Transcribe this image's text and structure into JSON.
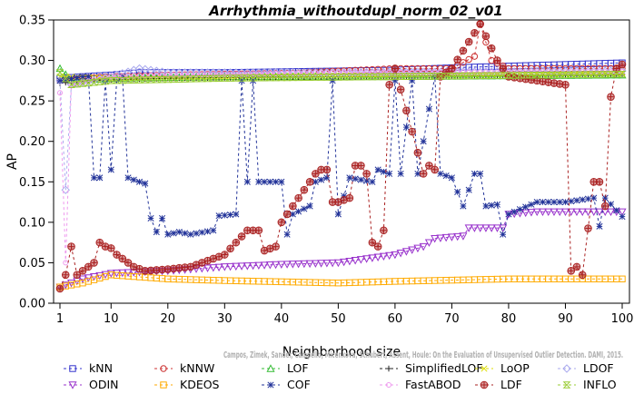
{
  "chart_data": {
    "type": "line",
    "title": "Arrhythmia_withoutdupl_norm_02_v01",
    "xlabel": "Neighborhood size",
    "ylabel": "AP",
    "xlim": [
      1,
      100
    ],
    "ylim": [
      0,
      0.35
    ],
    "x_ticks": [
      "1",
      "10",
      "20",
      "30",
      "40",
      "50",
      "60",
      "70",
      "80",
      "90",
      "100"
    ],
    "y_ticks": [
      "0.00",
      "0.05",
      "0.10",
      "0.15",
      "0.20",
      "0.25",
      "0.30",
      "0.35"
    ],
    "grid": false,
    "legend_position": "bottom",
    "credit": "Campos, Zimek, Sander, Campello, Micenkova, Schubert, Assent, Houle: On the Evaluation of Unsupervised Outlier Detection. DAMI, 2015.",
    "series": [
      {
        "name": "kNN",
        "color": "#3333cc",
        "marker": "square",
        "keypoints": [
          [
            1,
            0.278
          ],
          [
            5,
            0.28
          ],
          [
            10,
            0.282
          ],
          [
            15,
            0.285
          ],
          [
            30,
            0.285
          ],
          [
            60,
            0.288
          ],
          [
            70,
            0.291
          ],
          [
            80,
            0.293
          ],
          [
            90,
            0.295
          ],
          [
            100,
            0.297
          ]
        ]
      },
      {
        "name": "kNNW",
        "color": "#cc3333",
        "marker": "circle",
        "keypoints": [
          [
            1,
            0.275
          ],
          [
            5,
            0.278
          ],
          [
            10,
            0.28
          ],
          [
            20,
            0.282
          ],
          [
            40,
            0.284
          ],
          [
            60,
            0.29
          ],
          [
            70,
            0.29
          ],
          [
            74,
            0.305
          ],
          [
            75,
            0.345
          ],
          [
            77,
            0.3
          ],
          [
            80,
            0.29
          ],
          [
            100,
            0.29
          ]
        ]
      },
      {
        "name": "LOF",
        "color": "#33bb33",
        "marker": "triangle",
        "keypoints": [
          [
            1,
            0.29
          ],
          [
            3,
            0.275
          ],
          [
            10,
            0.278
          ],
          [
            30,
            0.28
          ],
          [
            60,
            0.28
          ],
          [
            100,
            0.282
          ]
        ]
      },
      {
        "name": "SimplifiedLOF",
        "color": "#222222",
        "marker": "plus",
        "keypoints": [
          [
            1,
            0.272
          ],
          [
            5,
            0.275
          ],
          [
            20,
            0.278
          ],
          [
            50,
            0.28
          ],
          [
            100,
            0.283
          ]
        ]
      },
      {
        "name": "LoOP",
        "color": "#dddd00",
        "marker": "x",
        "keypoints": [
          [
            1,
            0.28
          ],
          [
            10,
            0.278
          ],
          [
            40,
            0.282
          ],
          [
            100,
            0.285
          ]
        ]
      },
      {
        "name": "LDOF",
        "color": "#aaaaee",
        "marker": "diamond",
        "keypoints": [
          [
            1,
            0.275
          ],
          [
            2,
            0.14
          ],
          [
            3,
            0.27
          ],
          [
            10,
            0.28
          ],
          [
            15,
            0.29
          ],
          [
            20,
            0.285
          ],
          [
            50,
            0.285
          ],
          [
            100,
            0.287
          ]
        ]
      },
      {
        "name": "ODIN",
        "color": "#9933cc",
        "marker": "triangle-down",
        "keypoints": [
          [
            1,
            0.02
          ],
          [
            5,
            0.03
          ],
          [
            10,
            0.037
          ],
          [
            20,
            0.04
          ],
          [
            30,
            0.045
          ],
          [
            40,
            0.048
          ],
          [
            50,
            0.05
          ],
          [
            60,
            0.06
          ],
          [
            65,
            0.07
          ],
          [
            67,
            0.08
          ],
          [
            72,
            0.083
          ],
          [
            73,
            0.093
          ],
          [
            79,
            0.093
          ],
          [
            80,
            0.11
          ],
          [
            85,
            0.113
          ],
          [
            100,
            0.113
          ]
        ]
      },
      {
        "name": "KDEOS",
        "color": "#ffaa00",
        "marker": "square",
        "keypoints": [
          [
            1,
            0.02
          ],
          [
            5,
            0.025
          ],
          [
            10,
            0.035
          ],
          [
            20,
            0.03
          ],
          [
            30,
            0.028
          ],
          [
            50,
            0.025
          ],
          [
            60,
            0.027
          ],
          [
            80,
            0.03
          ],
          [
            100,
            0.03
          ]
        ]
      },
      {
        "name": "COF",
        "color": "#223399",
        "marker": "star",
        "keypoints": [
          [
            1,
            0.275
          ],
          [
            5,
            0.28
          ],
          [
            6,
            0.28
          ],
          [
            7,
            0.155
          ],
          [
            8,
            0.155
          ],
          [
            9,
            0.275
          ],
          [
            10,
            0.165
          ],
          [
            11,
            0.275
          ],
          [
            12,
            0.28
          ],
          [
            13,
            0.155
          ],
          [
            15,
            0.15
          ],
          [
            16,
            0.148
          ],
          [
            17,
            0.105
          ],
          [
            18,
            0.088
          ],
          [
            19,
            0.105
          ],
          [
            20,
            0.085
          ],
          [
            22,
            0.088
          ],
          [
            24,
            0.085
          ],
          [
            28,
            0.09
          ],
          [
            29,
            0.108
          ],
          [
            32,
            0.11
          ],
          [
            33,
            0.275
          ],
          [
            34,
            0.15
          ],
          [
            35,
            0.275
          ],
          [
            36,
            0.15
          ],
          [
            40,
            0.15
          ],
          [
            41,
            0.085
          ],
          [
            42,
            0.11
          ],
          [
            45,
            0.12
          ],
          [
            46,
            0.15
          ],
          [
            48,
            0.155
          ],
          [
            49,
            0.275
          ],
          [
            50,
            0.11
          ],
          [
            52,
            0.155
          ],
          [
            56,
            0.15
          ],
          [
            57,
            0.165
          ],
          [
            59,
            0.16
          ],
          [
            60,
            0.275
          ],
          [
            61,
            0.16
          ],
          [
            63,
            0.275
          ],
          [
            64,
            0.16
          ],
          [
            67,
            0.28
          ],
          [
            68,
            0.16
          ],
          [
            70,
            0.155
          ],
          [
            72,
            0.12
          ],
          [
            74,
            0.16
          ],
          [
            75,
            0.16
          ],
          [
            76,
            0.12
          ],
          [
            78,
            0.122
          ],
          [
            79,
            0.085
          ],
          [
            80,
            0.11
          ],
          [
            85,
            0.125
          ],
          [
            90,
            0.125
          ],
          [
            95,
            0.13
          ],
          [
            96,
            0.095
          ],
          [
            97,
            0.13
          ],
          [
            100,
            0.107
          ]
        ]
      },
      {
        "name": "FastABOD",
        "color": "#ee99ee",
        "marker": "circle-small",
        "keypoints": [
          [
            1,
            0.26
          ],
          [
            2,
            0.05
          ],
          [
            3,
            0.27
          ],
          [
            10,
            0.28
          ],
          [
            20,
            0.282
          ],
          [
            50,
            0.285
          ],
          [
            100,
            0.286
          ]
        ]
      },
      {
        "name": "LDF",
        "color": "#aa2222",
        "marker": "circle-plus",
        "keypoints": [
          [
            1,
            0.018
          ],
          [
            2,
            0.035
          ],
          [
            3,
            0.07
          ],
          [
            4,
            0.035
          ],
          [
            5,
            0.04
          ],
          [
            7,
            0.05
          ],
          [
            8,
            0.075
          ],
          [
            9,
            0.07
          ],
          [
            10,
            0.068
          ],
          [
            11,
            0.06
          ],
          [
            12,
            0.055
          ],
          [
            14,
            0.045
          ],
          [
            16,
            0.04
          ],
          [
            20,
            0.042
          ],
          [
            24,
            0.045
          ],
          [
            26,
            0.05
          ],
          [
            28,
            0.055
          ],
          [
            30,
            0.06
          ],
          [
            32,
            0.075
          ],
          [
            34,
            0.09
          ],
          [
            36,
            0.09
          ],
          [
            37,
            0.065
          ],
          [
            39,
            0.07
          ],
          [
            40,
            0.1
          ],
          [
            42,
            0.12
          ],
          [
            44,
            0.14
          ],
          [
            45,
            0.15
          ],
          [
            46,
            0.16
          ],
          [
            47,
            0.165
          ],
          [
            48,
            0.165
          ],
          [
            49,
            0.125
          ],
          [
            50,
            0.125
          ],
          [
            52,
            0.13
          ],
          [
            53,
            0.17
          ],
          [
            54,
            0.17
          ],
          [
            55,
            0.16
          ],
          [
            56,
            0.075
          ],
          [
            57,
            0.07
          ],
          [
            58,
            0.09
          ],
          [
            59,
            0.27
          ],
          [
            60,
            0.29
          ],
          [
            65,
            0.16
          ],
          [
            66,
            0.17
          ],
          [
            67,
            0.165
          ],
          [
            68,
            0.28
          ],
          [
            70,
            0.29
          ],
          [
            75,
            0.345
          ],
          [
            78,
            0.3
          ],
          [
            80,
            0.28
          ],
          [
            85,
            0.275
          ],
          [
            90,
            0.27
          ],
          [
            91,
            0.04
          ],
          [
            92,
            0.045
          ],
          [
            93,
            0.035
          ],
          [
            95,
            0.15
          ],
          [
            96,
            0.15
          ],
          [
            97,
            0.12
          ],
          [
            98,
            0.255
          ],
          [
            99,
            0.29
          ],
          [
            100,
            0.295
          ]
        ]
      },
      {
        "name": "INFLO",
        "color": "#99cc33",
        "marker": "hourglass",
        "keypoints": [
          [
            1,
            0.285
          ],
          [
            3,
            0.27
          ],
          [
            10,
            0.275
          ],
          [
            30,
            0.278
          ],
          [
            60,
            0.28
          ],
          [
            100,
            0.283
          ]
        ]
      }
    ]
  }
}
